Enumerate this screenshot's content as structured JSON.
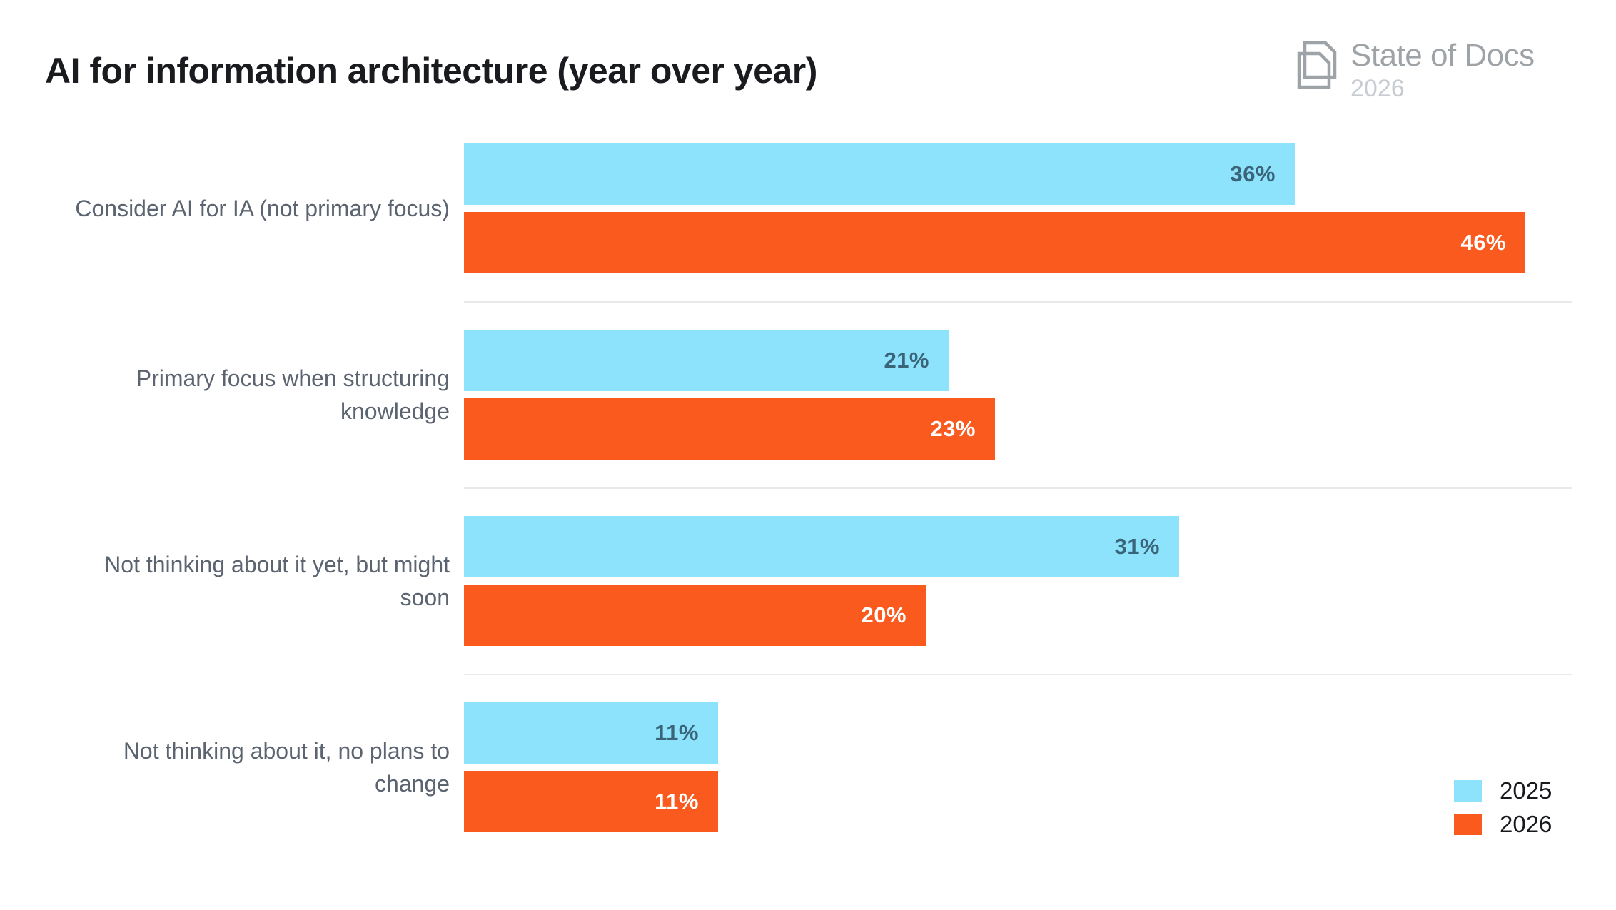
{
  "title": "AI for information architecture (year over year)",
  "logo": {
    "name": "State of Docs",
    "year": "2026",
    "icon": "overlapping-documents"
  },
  "chart_data": {
    "type": "bar",
    "orientation": "horizontal",
    "title": "AI for information architecture (year over year)",
    "categories": [
      "Consider AI for IA (not primary focus)",
      "Primary focus when structuring knowledge",
      "Not thinking about it yet, but might soon",
      "Not thinking about it, no plans to change"
    ],
    "category_lines": [
      [
        "Consider AI for IA (not primary focus)"
      ],
      [
        "Primary focus when structuring",
        "knowledge"
      ],
      [
        "Not thinking about it yet, but might",
        "soon"
      ],
      [
        "Not thinking about it, no plans to",
        "change"
      ]
    ],
    "series": [
      {
        "name": "2025",
        "color": "#8DE2FC",
        "value_label_color": "#3A6579",
        "values": [
          36,
          21,
          31,
          11
        ]
      },
      {
        "name": "2026",
        "color": "#FA5A1E",
        "value_label_color": "#FFFFFF",
        "values": [
          46,
          23,
          20,
          11
        ]
      }
    ],
    "value_suffix": "%",
    "xlim": [
      0,
      48
    ],
    "grid": false,
    "value_labels": "inside-end",
    "row_separators": true,
    "legend_position": "bottom-right"
  },
  "legend": [
    {
      "label": "2025"
    },
    {
      "label": "2026"
    }
  ],
  "colors": {
    "background": "#FFFFFF",
    "title_text": "#191B1F",
    "category_label": "#5B6470",
    "separator": "#E8E9EA",
    "logo_text": "#9EA3A8",
    "logo_year": "#C7CCD2",
    "legend_text": "#17191C",
    "bar_2025": "#8DE2FC",
    "bar_2026": "#FA5A1E"
  }
}
